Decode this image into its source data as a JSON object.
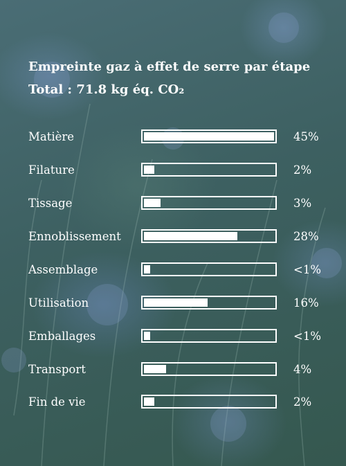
{
  "header": {
    "title": "Empreinte gaz à effet de serre par étape",
    "total": "Total : 71.8 kg éq. CO₂"
  },
  "stages": [
    {
      "label": "Matière",
      "pct": "45%",
      "fill_fraction": 1.0
    },
    {
      "label": "Filature",
      "pct": "2%",
      "fill_fraction": 0.08
    },
    {
      "label": "Tissage",
      "pct": "3%",
      "fill_fraction": 0.13
    },
    {
      "label": "Ennoblissement",
      "pct": "28%",
      "fill_fraction": 0.72
    },
    {
      "label": "Assemblage",
      "pct": "<1%",
      "fill_fraction": 0.05
    },
    {
      "label": "Utilisation",
      "pct": "16%",
      "fill_fraction": 0.49
    },
    {
      "label": "Emballages",
      "pct": "<1%",
      "fill_fraction": 0.05
    },
    {
      "label": "Transport",
      "pct": "4%",
      "fill_fraction": 0.17
    },
    {
      "label": "Fin de vie",
      "pct": "2%",
      "fill_fraction": 0.08
    }
  ],
  "colors": {
    "text": "#ffffff",
    "bar": "#ffffff",
    "background": "#3f5f66"
  }
}
